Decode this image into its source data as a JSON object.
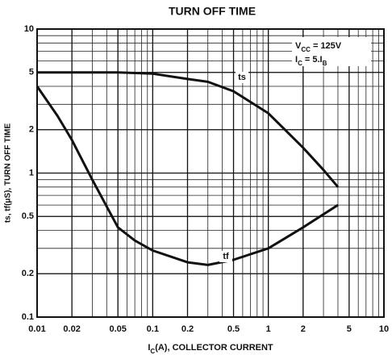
{
  "chart_data": {
    "type": "line",
    "title": "TURN OFF TIME",
    "x_label": [
      "I",
      "C",
      "(A), COLLECTOR CURRENT"
    ],
    "y_label": "ts, tf(μS), TURN OFF TIME",
    "annotations": [
      [
        "V",
        "CC",
        " = 125V"
      ],
      [
        "I",
        "C",
        " = 5.I",
        "B"
      ]
    ],
    "log_x": true,
    "log_y": true,
    "grid": true,
    "xlim": [
      0.01,
      10
    ],
    "ylim": [
      0.1,
      10
    ],
    "xticks": [
      0.01,
      0.02,
      0.05,
      0.1,
      0.2,
      0.5,
      1,
      2,
      5,
      10
    ],
    "yticks": [
      0.1,
      0.2,
      0.5,
      1,
      2,
      5,
      10
    ],
    "series": [
      {
        "name": "ts",
        "color": "#111111",
        "x": [
          0.01,
          0.02,
          0.05,
          0.1,
          0.2,
          0.3,
          0.5,
          1,
          2,
          3,
          4
        ],
        "values": [
          5,
          5,
          5,
          4.9,
          4.5,
          4.3,
          3.7,
          2.6,
          1.5,
          1.05,
          0.8
        ]
      },
      {
        "name": "tf",
        "color": "#111111",
        "x": [
          0.01,
          0.015,
          0.02,
          0.03,
          0.05,
          0.07,
          0.1,
          0.2,
          0.3,
          0.5,
          1,
          2,
          4
        ],
        "values": [
          4,
          2.5,
          1.7,
          0.9,
          0.42,
          0.34,
          0.29,
          0.24,
          0.23,
          0.25,
          0.3,
          0.42,
          0.6
        ]
      }
    ]
  }
}
